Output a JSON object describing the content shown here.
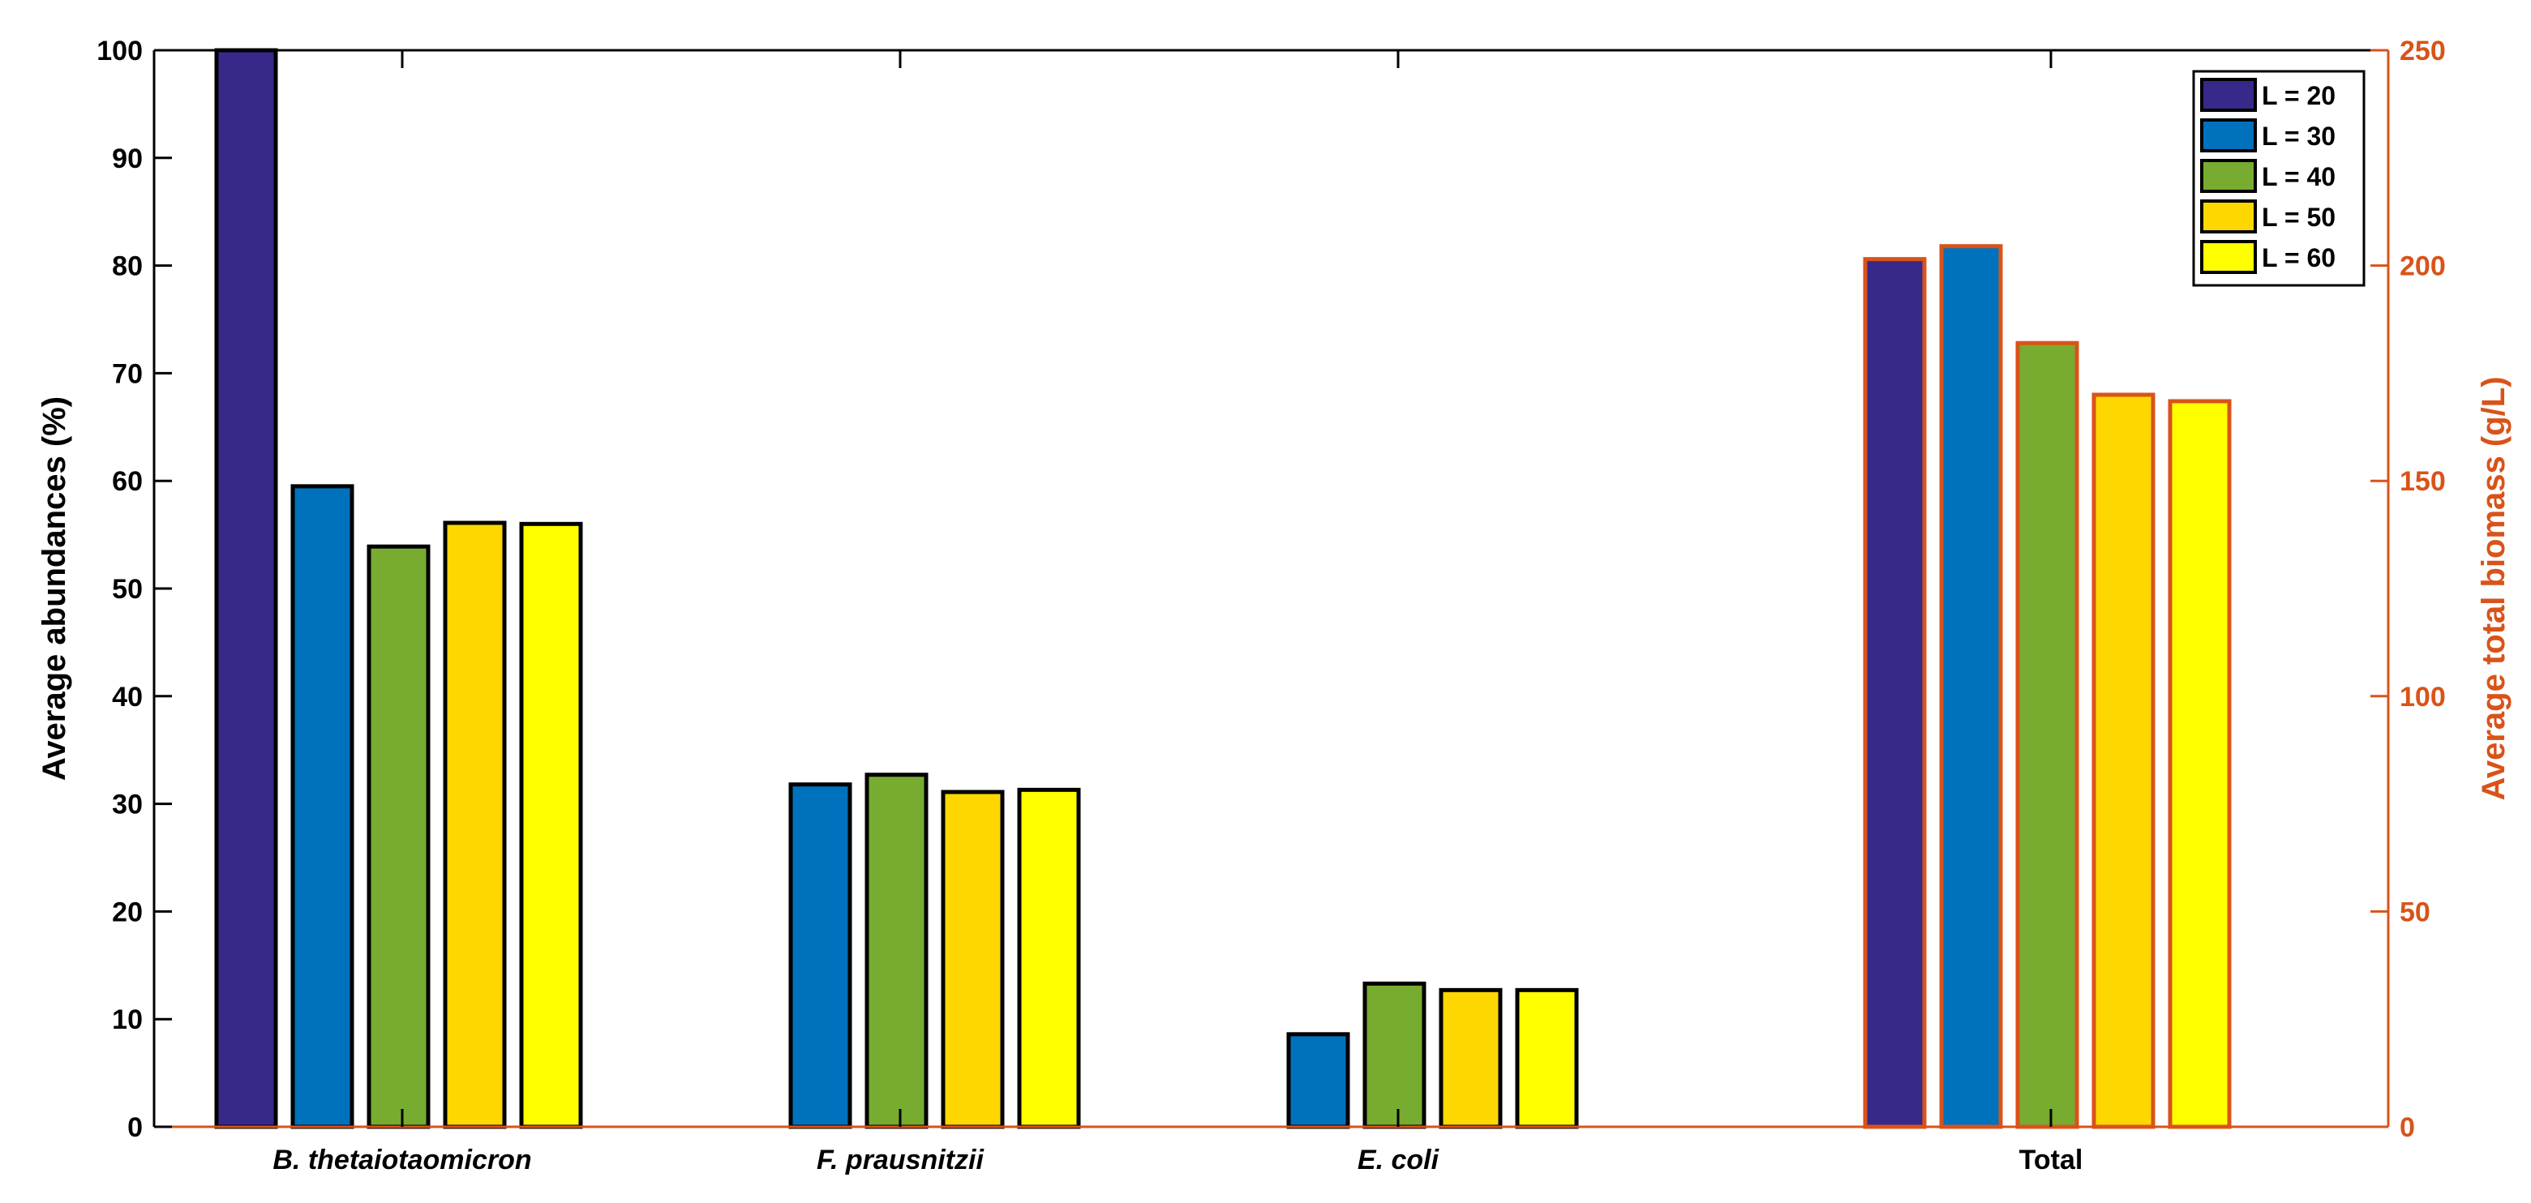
{
  "colors": {
    "left_axis": "#000000",
    "right_axis": "#D95319",
    "bar_edge_left": "#000000",
    "bar_edge_right": "#D95319"
  },
  "chart_data": {
    "type": "bar",
    "title": "",
    "categories": [
      {
        "label": "B. thetaiotaomicron",
        "italic": true,
        "axis": "left"
      },
      {
        "label": "F. prausnitzii",
        "italic": true,
        "axis": "left"
      },
      {
        "label": "E. coli",
        "italic": true,
        "axis": "left"
      },
      {
        "label": "Total",
        "italic": false,
        "axis": "right"
      }
    ],
    "series": [
      {
        "name": "L = 20",
        "color": "#37298A",
        "values": [
          100,
          0,
          0,
          201.5
        ]
      },
      {
        "name": "L = 30",
        "color": "#0072BD",
        "values": [
          59.5,
          31.8,
          8.6,
          204.5
        ]
      },
      {
        "name": "L = 40",
        "color": "#77AC30",
        "values": [
          53.9,
          32.7,
          13.3,
          182
        ]
      },
      {
        "name": "L = 50",
        "color": "#FFD700",
        "values": [
          56.1,
          31.1,
          12.7,
          170
        ]
      },
      {
        "name": "L = 60",
        "color": "#FFFF00",
        "values": [
          56.0,
          31.3,
          12.7,
          168.5
        ]
      }
    ],
    "left_axis": {
      "label": "Average abundances (%)",
      "ylim": [
        0,
        100
      ],
      "ticks": [
        0,
        10,
        20,
        30,
        40,
        50,
        60,
        70,
        80,
        90,
        100
      ]
    },
    "right_axis": {
      "label": "Average total biomass (g/L)",
      "ylim": [
        0,
        250
      ],
      "ticks": [
        0,
        50,
        100,
        150,
        200,
        250
      ]
    },
    "legend": {
      "placement": "top-right"
    },
    "grid": false
  }
}
